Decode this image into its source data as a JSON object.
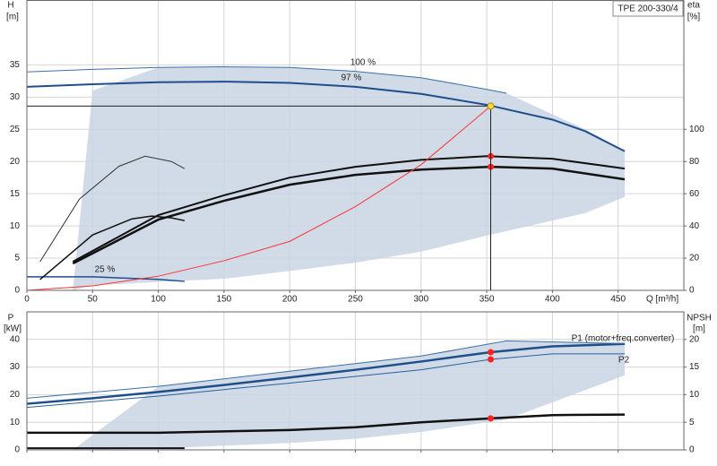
{
  "chart_data": [
    {
      "type": "line",
      "title": "TPE 200-330/4",
      "xlabel": "Q [m³/h]",
      "ylabel": "H",
      "yunit": "[m]",
      "y2label": "eta",
      "y2unit": "[%]",
      "xlim": [
        0,
        500
      ],
      "xticks": [
        0,
        50,
        100,
        150,
        200,
        250,
        300,
        350,
        400,
        450
      ],
      "ylim": [
        0,
        45
      ],
      "yticks": [
        0,
        5,
        10,
        15,
        20,
        25,
        30,
        35
      ],
      "y2lim": [
        0,
        180
      ],
      "y2ticks": [
        0,
        20,
        40,
        60,
        80,
        100
      ],
      "grid": true,
      "areas": [
        {
          "x": [
            35,
            50,
            100,
            150,
            200,
            250,
            300,
            350,
            365,
            425,
            455
          ],
          "upper": [
            0,
            31,
            34.6,
            34.7,
            34.6,
            34,
            33,
            31.2,
            30.6,
            25,
            21.6
          ],
          "lower": [
            0,
            0.8,
            1.3,
            1.8,
            3,
            4.3,
            6,
            8.5,
            9.2,
            12,
            14.5
          ],
          "color": "#c8d5e3"
        }
      ],
      "series": [
        {
          "name": "100 %",
          "color": "#3d6fa8",
          "width": 1,
          "x": [
            0,
            50,
            100,
            150,
            200,
            250,
            300,
            350,
            365
          ],
          "values": [
            33.9,
            34.3,
            34.6,
            34.7,
            34.6,
            34,
            33,
            31.2,
            30.6
          ]
        },
        {
          "name": "97 %",
          "color": "#1f4e8c",
          "width": 2,
          "x": [
            0,
            50,
            100,
            150,
            200,
            250,
            300,
            350,
            400,
            425,
            455
          ],
          "values": [
            31.6,
            32,
            32.3,
            32.4,
            32.2,
            31.6,
            30.5,
            28.8,
            26.5,
            24.7,
            21.6
          ]
        },
        {
          "name": "25 %",
          "color": "#1f4e8c",
          "width": 1.5,
          "x": [
            0,
            50,
            100,
            120
          ],
          "values": [
            2.1,
            2.1,
            1.7,
            1.4
          ]
        },
        {
          "color": "#111111",
          "width": 2,
          "axis": "y2",
          "x": [
            35,
            100,
            150,
            200,
            250,
            300,
            350,
            400,
            455
          ],
          "values": [
            17.8,
            46.7,
            59,
            70,
            76.7,
            81,
            83.3,
            81.7,
            75.6
          ]
        },
        {
          "color": "#111111",
          "width": 2.5,
          "axis": "y2",
          "x": [
            35,
            100,
            150,
            200,
            250,
            300,
            353,
            400,
            455
          ],
          "values": [
            16.7,
            43.9,
            55.6,
            65.6,
            71.7,
            75,
            76.7,
            75.6,
            68.9
          ]
        },
        {
          "color": "#333333",
          "width": 1,
          "axis": "y2",
          "x": [
            10,
            40,
            70,
            90,
            110,
            120
          ],
          "values": [
            17.8,
            56.7,
            77,
            83.3,
            80,
            75.6
          ]
        },
        {
          "color": "#111111",
          "width": 1.5,
          "axis": "y2",
          "x": [
            10,
            50,
            80,
            95,
            110,
            120
          ],
          "values": [
            6.7,
            34.4,
            44.4,
            46.1,
            45,
            43.3
          ]
        },
        {
          "color": "#ff3333",
          "width": 1,
          "x": [
            0,
            50,
            100,
            150,
            200,
            250,
            300,
            353
          ],
          "values": [
            0,
            0.7,
            2.2,
            4.6,
            7.6,
            13,
            19.5,
            28.6
          ]
        },
        {
          "color": "#ff2020",
          "marker": true,
          "axis": "y2",
          "x": [
            353,
            353
          ],
          "values": [
            83.3,
            76.7
          ]
        },
        {
          "color": "#f7d84a",
          "marker": true,
          "guides": true,
          "x": [
            353
          ],
          "values": [
            28.6
          ]
        }
      ]
    },
    {
      "type": "line",
      "ylabel": "P",
      "yunit": "[kW]",
      "y2label": "NPSH",
      "y2unit": "[m]",
      "xlim": [
        0,
        500
      ],
      "xticks": [
        0,
        50,
        100,
        150,
        200,
        250,
        300,
        350,
        400,
        450
      ],
      "show_xtick_labels": false,
      "ylim": [
        0,
        50
      ],
      "yticks": [
        0,
        10,
        20,
        30,
        40
      ],
      "y2lim": [
        0,
        25
      ],
      "y2ticks": [
        0,
        5,
        10,
        15,
        20
      ],
      "grid": true,
      "areas": [
        {
          "x": [
            35,
            100,
            200,
            250,
            300,
            365,
            455
          ],
          "upper": [
            0,
            23,
            28.5,
            31.2,
            34,
            39.5,
            38.5
          ],
          "lower": [
            0,
            0.5,
            2.5,
            4,
            6.5,
            11,
            27
          ],
          "color": "#c8d5e3"
        }
      ],
      "series": [
        {
          "name": "P1 (motor+freq.converter)",
          "color": "#1f4e8c",
          "width": 2.5,
          "x": [
            0,
            50,
            100,
            150,
            200,
            250,
            300,
            353,
            400,
            455
          ],
          "values": [
            16.7,
            18.7,
            21,
            23.5,
            26.2,
            29,
            32,
            35.4,
            37.5,
            38.4
          ]
        },
        {
          "name": "P2",
          "color": "#2a5d9f",
          "width": 1,
          "x": [
            0,
            100,
            200,
            300,
            353,
            400,
            455
          ],
          "values": [
            15.4,
            19.5,
            24.2,
            29,
            32.8,
            34.8,
            34.8
          ]
        },
        {
          "color": "#3d6fa8",
          "width": 1,
          "x": [
            0,
            100,
            200,
            300,
            365,
            455
          ],
          "values": [
            18.7,
            23,
            28.5,
            34,
            39.5,
            38.5
          ]
        },
        {
          "color": "#111111",
          "width": 2.5,
          "axis": "y2",
          "x": [
            0,
            100,
            200,
            250,
            300,
            353,
            400,
            455
          ],
          "values": [
            3.1,
            3.1,
            3.6,
            4.1,
            5,
            5.7,
            6.3,
            6.4
          ]
        },
        {
          "color": "#111111",
          "width": 2,
          "x": [
            0,
            120
          ],
          "values": [
            0.6,
            0.6
          ]
        },
        {
          "color": "#ff2020",
          "marker": true,
          "x": [
            353,
            353
          ],
          "values": [
            35.4,
            32.8
          ]
        },
        {
          "color": "#ff2020",
          "marker": true,
          "axis": "y2",
          "x": [
            353
          ],
          "values": [
            5.7
          ]
        }
      ]
    }
  ]
}
